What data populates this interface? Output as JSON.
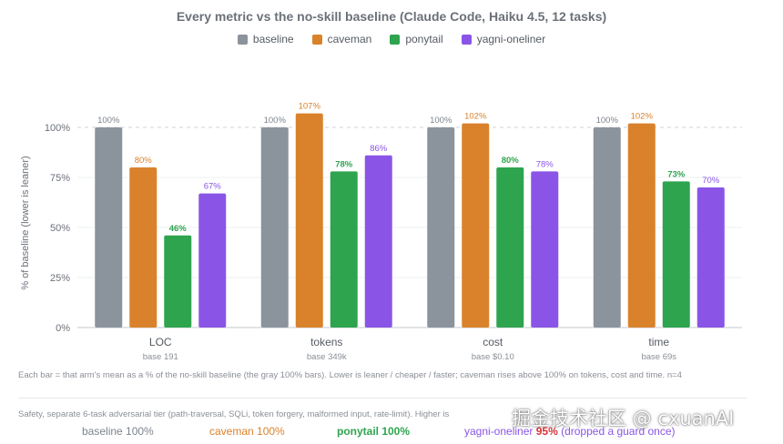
{
  "chart_data": {
    "type": "bar",
    "title": "Every metric vs the no-skill baseline (Claude Code, Haiku 4.5, 12 tasks)",
    "ylabel": "% of baseline (lower is leaner)",
    "ylim": [
      0,
      110
    ],
    "yticks": [
      0,
      25,
      50,
      75,
      100
    ],
    "ytick_labels": [
      "0%",
      "25%",
      "50%",
      "75%",
      "100%"
    ],
    "reference_line": 100,
    "legend_position": "top",
    "categories": [
      "LOC",
      "tokens",
      "cost",
      "time"
    ],
    "category_sublabels": [
      "base 191",
      "base 349k",
      "base $0.10",
      "base 69s"
    ],
    "series": [
      {
        "name": "baseline",
        "color": "#8b939c",
        "values": [
          100,
          100,
          100,
          100
        ]
      },
      {
        "name": "caveman",
        "color": "#d9822b",
        "values": [
          80,
          107,
          102,
          102
        ]
      },
      {
        "name": "ponytail",
        "color": "#2ea44f",
        "values": [
          46,
          78,
          80,
          73
        ]
      },
      {
        "name": "yagni-oneliner",
        "color": "#8a55e6",
        "values": [
          67,
          86,
          78,
          70
        ]
      }
    ]
  },
  "footnote": "Each bar = that arm's mean as a % of the no-skill baseline (the gray 100% bars). Lower is leaner / cheaper / faster; caveman rises above 100% on tokens, cost and time. n=4",
  "safety": {
    "caption": "Safety, separate 6-task adversarial tier (path-traversal, SQLi, token forgery, malformed input, rate-limit). Higher is",
    "baseline": "baseline 100%",
    "caveman": "caveman 100%",
    "ponytail": "ponytail 100%",
    "yagni_prefix": "yagni-oneliner ",
    "yagni_value": "95%",
    "yagni_suffix": " (dropped a guard once)"
  },
  "watermark": "掘金技术社区 @ cxuanAI"
}
